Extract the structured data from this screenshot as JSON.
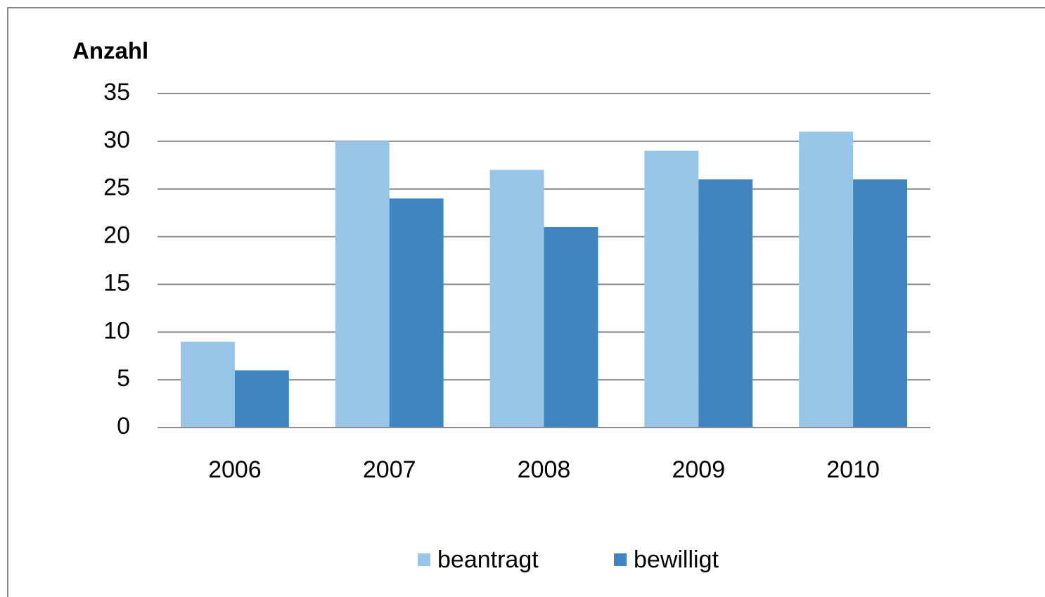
{
  "chart_data": {
    "type": "bar",
    "title": "Anzahl",
    "categories": [
      "2006",
      "2007",
      "2008",
      "2009",
      "2010"
    ],
    "series": [
      {
        "name": "beantragt",
        "color": "#97c6e8",
        "values": [
          9,
          30,
          27,
          29,
          31
        ]
      },
      {
        "name": "bewilligt",
        "color": "#3f85c2",
        "values": [
          6,
          24,
          21,
          26,
          26
        ]
      }
    ],
    "ylim": [
      0,
      35
    ],
    "yticks": [
      0,
      5,
      10,
      15,
      20,
      25,
      30,
      35
    ],
    "grid": true,
    "legend": "bottom"
  }
}
